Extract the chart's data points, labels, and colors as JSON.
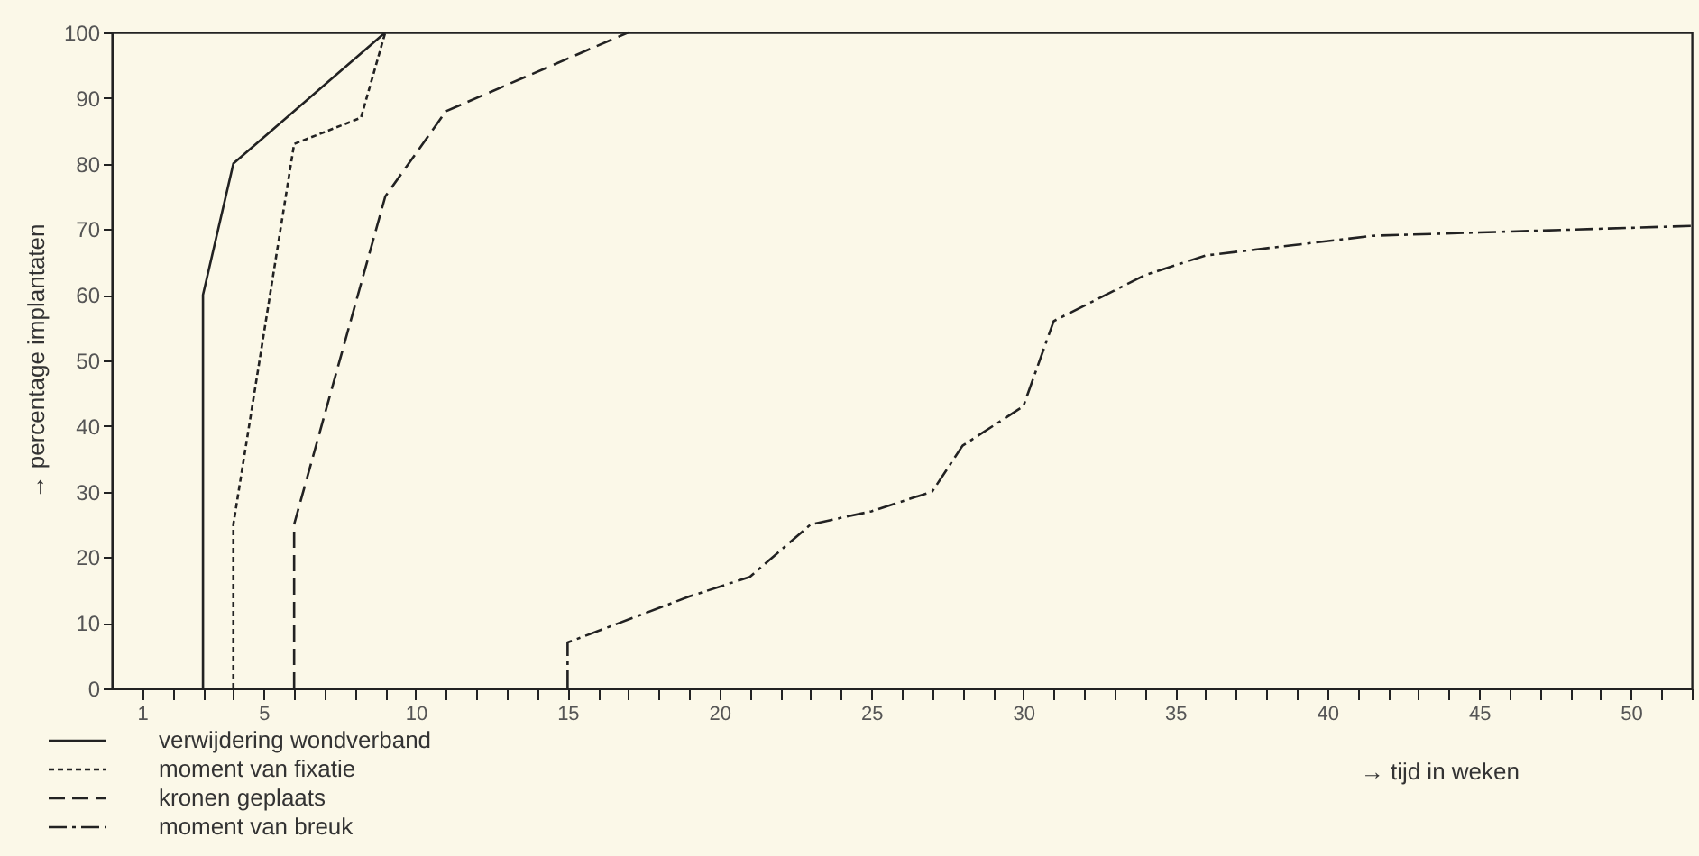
{
  "chart_data": {
    "type": "line",
    "xlabel": "→ tijd in weken",
    "ylabel": "→ percentage implantaten",
    "xlim": [
      0,
      52
    ],
    "xticks": [
      {
        "value": 1,
        "label": "1"
      },
      {
        "value": 2,
        "label": null
      },
      {
        "value": 3,
        "label": null
      },
      {
        "value": 4,
        "label": null
      },
      {
        "value": 5,
        "label": "5"
      },
      {
        "value": 6,
        "label": null
      },
      {
        "value": 7,
        "label": null
      },
      {
        "value": 8,
        "label": null
      },
      {
        "value": 9,
        "label": null
      },
      {
        "value": 10,
        "label": "10"
      },
      {
        "value": 11,
        "label": null
      },
      {
        "value": 12,
        "label": null
      },
      {
        "value": 13,
        "label": null
      },
      {
        "value": 14,
        "label": null
      },
      {
        "value": 15,
        "label": "15"
      },
      {
        "value": 16,
        "label": null
      },
      {
        "value": 17,
        "label": null
      },
      {
        "value": 18,
        "label": null
      },
      {
        "value": 19,
        "label": null
      },
      {
        "value": 20,
        "label": "20"
      },
      {
        "value": 21,
        "label": null
      },
      {
        "value": 22,
        "label": null
      },
      {
        "value": 23,
        "label": null
      },
      {
        "value": 24,
        "label": null
      },
      {
        "value": 25,
        "label": "25"
      },
      {
        "value": 26,
        "label": null
      },
      {
        "value": 27,
        "label": null
      },
      {
        "value": 28,
        "label": null
      },
      {
        "value": 29,
        "label": null
      },
      {
        "value": 30,
        "label": "30"
      },
      {
        "value": 31,
        "label": null
      },
      {
        "value": 32,
        "label": null
      },
      {
        "value": 33,
        "label": null
      },
      {
        "value": 34,
        "label": null
      },
      {
        "value": 35,
        "label": "35"
      },
      {
        "value": 36,
        "label": null
      },
      {
        "value": 37,
        "label": null
      },
      {
        "value": 38,
        "label": null
      },
      {
        "value": 39,
        "label": null
      },
      {
        "value": 40,
        "label": "40"
      },
      {
        "value": 41,
        "label": null
      },
      {
        "value": 42,
        "label": null
      },
      {
        "value": 43,
        "label": null
      },
      {
        "value": 44,
        "label": null
      },
      {
        "value": 45,
        "label": "45"
      },
      {
        "value": 46,
        "label": null
      },
      {
        "value": 47,
        "label": null
      },
      {
        "value": 48,
        "label": null
      },
      {
        "value": 49,
        "label": null
      },
      {
        "value": 50,
        "label": "50"
      },
      {
        "value": 51,
        "label": null
      },
      {
        "value": 52,
        "label": null
      }
    ],
    "ylim": [
      0,
      100
    ],
    "yticks": [
      0,
      10,
      20,
      30,
      40,
      50,
      60,
      70,
      80,
      90,
      100
    ],
    "grid": false,
    "legend": "bottom left",
    "marker": "none",
    "series": [
      {
        "name": "verwijdering wondverband",
        "color": "#222222",
        "line_style": "solid",
        "x": [
          3,
          3,
          4,
          9
        ],
        "values": [
          0,
          60,
          80,
          100
        ]
      },
      {
        "name": "moment van fixatie",
        "color": "#222222",
        "line_style": "dotted",
        "x": [
          4,
          4,
          6,
          8.2,
          9
        ],
        "values": [
          0,
          25,
          83,
          87,
          100
        ]
      },
      {
        "name": "kronen geplaats",
        "color": "#222222",
        "line_style": "dashed",
        "x": [
          6,
          6,
          9,
          11,
          17
        ],
        "values": [
          0,
          25,
          75,
          88,
          100
        ]
      },
      {
        "name": "moment van breuk",
        "color": "#222222",
        "line_style": "dashdot",
        "x": [
          15,
          15,
          19,
          21,
          23,
          25,
          27,
          28,
          30,
          31,
          34,
          36,
          41.5,
          45,
          52
        ],
        "values": [
          0,
          7,
          14,
          17,
          25,
          27,
          30,
          37,
          43,
          56,
          63,
          66,
          69,
          69.5,
          70.5
        ]
      }
    ]
  }
}
